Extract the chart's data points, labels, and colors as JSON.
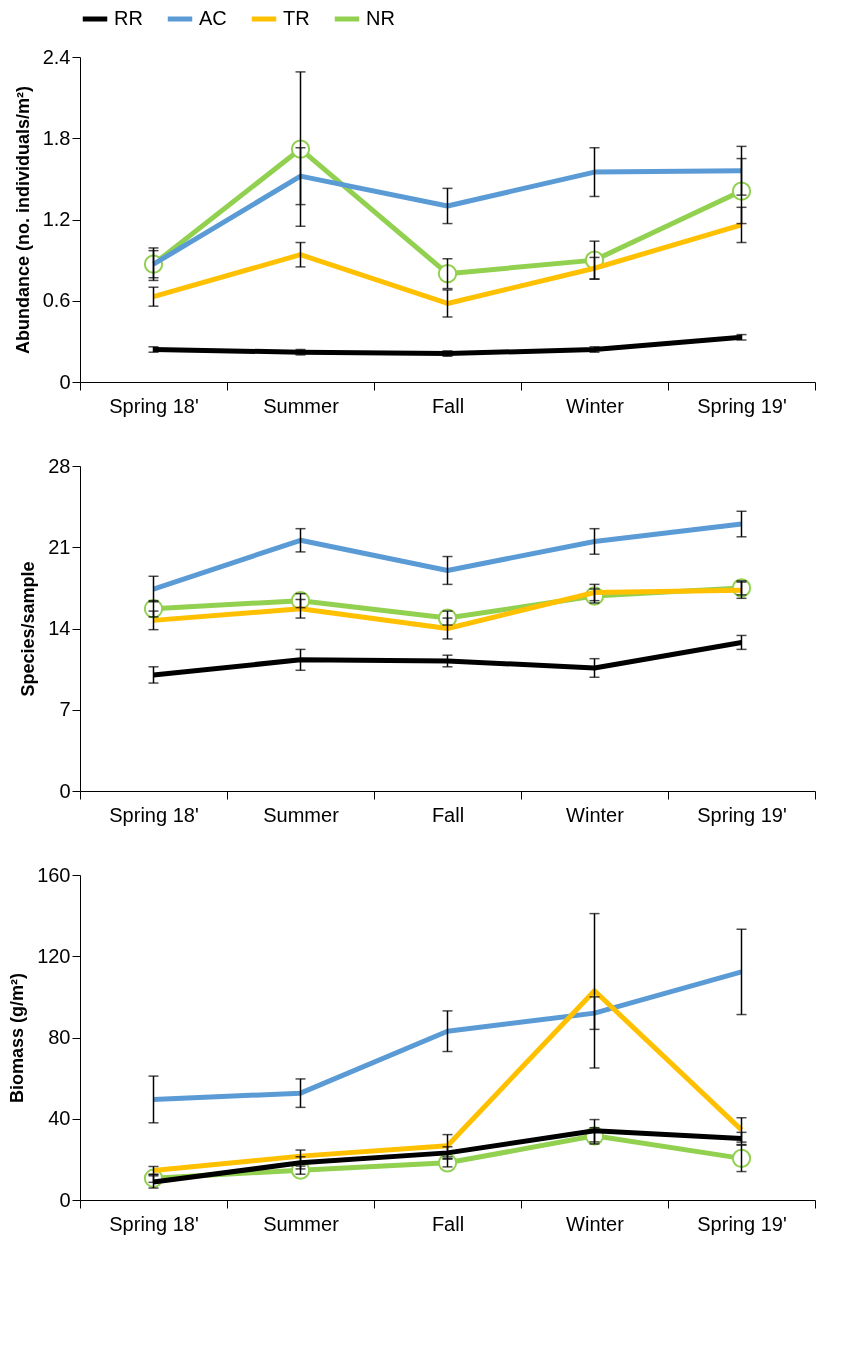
{
  "chart_data": [
    {
      "type": "line",
      "ylabel": "Abundance (no. individuals/m²)",
      "categories": [
        "Spring 18'",
        "Summer",
        "Fall",
        "Winter",
        "Spring 19'"
      ],
      "ylim": [
        0,
        2.4
      ],
      "yticks": [
        0,
        0.6,
        1.2,
        1.8,
        2.4
      ],
      "grid": false,
      "legend": "top",
      "series": [
        {
          "name": "RR",
          "color": "#000000",
          "marker": "none",
          "values": [
            0.24,
            0.22,
            0.21,
            0.24,
            0.33
          ],
          "errors": [
            0.02,
            0.02,
            0.02,
            0.02,
            0.02
          ]
        },
        {
          "name": "AC",
          "color": "#5b9bd5",
          "marker": "none",
          "values": [
            0.87,
            1.52,
            1.3,
            1.55,
            1.56
          ],
          "errors": [
            0.1,
            0.21,
            0.13,
            0.18,
            0.18
          ]
        },
        {
          "name": "TR",
          "color": "#ffc000",
          "marker": "none",
          "values": [
            0.63,
            0.94,
            0.58,
            0.84,
            1.16
          ],
          "errors": [
            0.07,
            0.09,
            0.1,
            0.08,
            0.13
          ]
        },
        {
          "name": "NR",
          "color": "#92d050",
          "marker": "circle",
          "values": [
            0.87,
            1.72,
            0.8,
            0.9,
            1.41
          ],
          "errors": [
            0.12,
            0.57,
            0.11,
            0.14,
            0.24
          ]
        }
      ]
    },
    {
      "type": "line",
      "ylabel": "Species/sample",
      "categories": [
        "Spring 18'",
        "Summer",
        "Fall",
        "Winter",
        "Spring 19'"
      ],
      "ylim": [
        0,
        28
      ],
      "yticks": [
        0,
        7,
        14,
        21,
        28
      ],
      "grid": false,
      "legend": false,
      "series": [
        {
          "name": "RR",
          "color": "#000000",
          "marker": "none",
          "values": [
            10.0,
            11.3,
            11.2,
            10.6,
            12.8
          ],
          "errors": [
            0.7,
            0.9,
            0.5,
            0.8,
            0.6
          ]
        },
        {
          "name": "AC",
          "color": "#5b9bd5",
          "marker": "none",
          "values": [
            17.4,
            21.6,
            19.0,
            21.5,
            23.0
          ],
          "errors": [
            1.1,
            1.0,
            1.2,
            1.1,
            1.1
          ]
        },
        {
          "name": "TR",
          "color": "#ffc000",
          "marker": "none",
          "values": [
            14.7,
            15.7,
            14.0,
            17.1,
            17.3
          ],
          "errors": [
            0.8,
            0.8,
            0.9,
            0.7,
            0.7
          ]
        },
        {
          "name": "NR",
          "color": "#92d050",
          "marker": "circle",
          "values": [
            15.7,
            16.4,
            14.9,
            16.8,
            17.5
          ],
          "errors": [
            0.7,
            0.6,
            0.6,
            0.6,
            0.6
          ]
        }
      ]
    },
    {
      "type": "line",
      "ylabel": "Biomass (g/m²)",
      "categories": [
        "Spring 18'",
        "Summer",
        "Fall",
        "Winter",
        "Spring 19'"
      ],
      "ylim": [
        0,
        160
      ],
      "yticks": [
        0,
        40,
        80,
        120,
        160
      ],
      "grid": false,
      "legend": false,
      "series": [
        {
          "name": "RR",
          "color": "#000000",
          "marker": "none",
          "values": [
            8.9,
            18.3,
            23.2,
            34.1,
            30.3
          ],
          "errors": [
            3,
            3,
            3,
            5.5,
            3
          ]
        },
        {
          "name": "AC",
          "color": "#5b9bd5",
          "marker": "none",
          "values": [
            49.5,
            52.6,
            83.1,
            92.0,
            112.3
          ],
          "errors": [
            11.5,
            7,
            10,
            8,
            21
          ]
        },
        {
          "name": "TR",
          "color": "#ffc000",
          "marker": "none",
          "values": [
            14.5,
            21.6,
            26.7,
            103,
            34.5
          ],
          "errors": [
            2,
            3,
            5.5,
            38,
            6
          ]
        },
        {
          "name": "NR",
          "color": "#92d050",
          "marker": "circle",
          "values": [
            10.7,
            14.7,
            18.3,
            31.6,
            20.5
          ],
          "errors": [
            2,
            2,
            2,
            4,
            6.5
          ]
        }
      ]
    }
  ]
}
